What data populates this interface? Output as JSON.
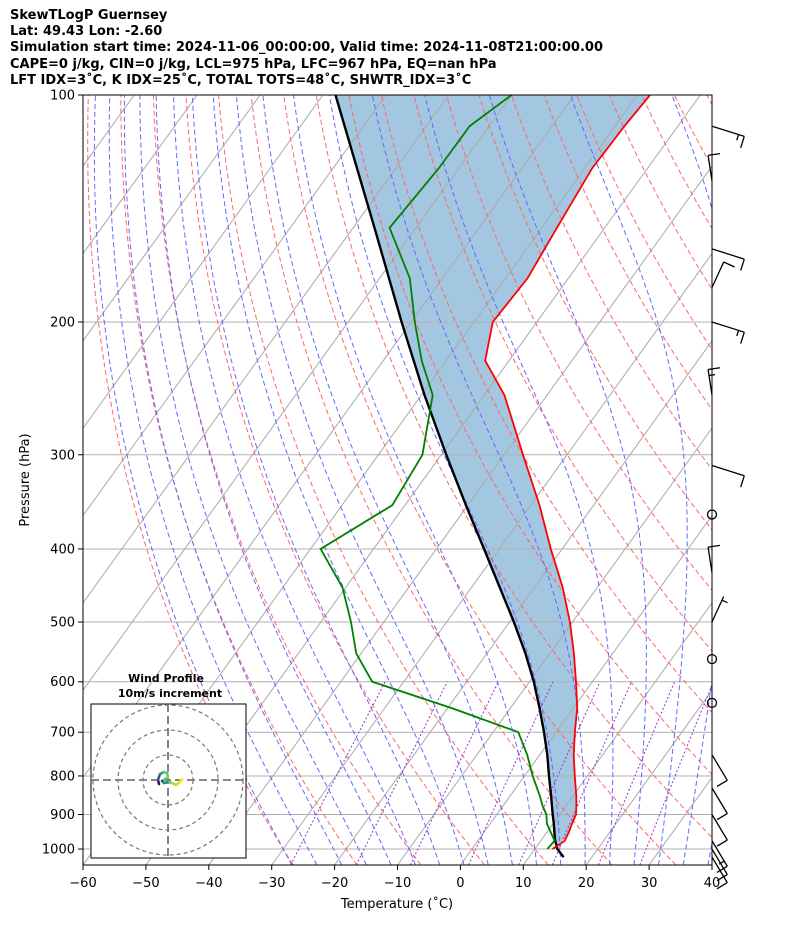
{
  "header": {
    "line1": "SkewTLogP Guernsey",
    "line2": "Lat: 49.43   Lon: -2.60",
    "line3": "Simulation start time: 2024-11-06_00:00:00, Valid time: 2024-11-08T21:00:00.00",
    "line4": "CAPE=0 j/kg, CIN=0 j/kg, LCL=975 hPa, LFC=967 hPa, EQ=nan hPa",
    "line5": "LFT IDX=3˚C, K IDX=25˚C, TOTAL TOTS=48˚C, SHWTR_IDX=3˚C"
  },
  "chart_data": {
    "type": "line",
    "title": "SkewTLogP Guernsey",
    "xlabel": "Temperature (˚C)",
    "ylabel": "Pressure (hPa)",
    "xlim": [
      -60,
      40
    ],
    "ylim": [
      1050,
      100
    ],
    "y_scale": "log",
    "x_ticks": [
      "−60",
      "−50",
      "−40",
      "−30",
      "−20",
      "−10",
      "0",
      "10",
      "20",
      "30",
      "40"
    ],
    "y_ticks": [
      "100",
      "200",
      "300",
      "400",
      "500",
      "600",
      "700",
      "800",
      "900",
      "1000"
    ],
    "grid": true,
    "colors": {
      "temperature": "#ff0000",
      "dewpoint": "#008000",
      "parcel": "#000000",
      "shading": "#a3c7e0",
      "dry_adiabat": "#ff6666",
      "moist_adiabat": "#6666ff",
      "mixing_ratio": "#9933cc",
      "isotherm": "#aaaaaa"
    },
    "series": [
      {
        "key": "temperature",
        "pressure": [
          1000,
          975,
          950,
          925,
          900,
          875,
          850,
          800,
          750,
          700,
          650,
          600,
          550,
          500,
          450,
          400,
          350,
          300,
          250,
          225,
          200,
          175,
          150,
          125,
          110,
          100
        ],
        "values": [
          12.8,
          13.8,
          13.5,
          13.0,
          12.6,
          11.6,
          10.5,
          8.0,
          5.4,
          3.0,
          0.6,
          -2.6,
          -6.2,
          -10.4,
          -15.5,
          -21.8,
          -28.6,
          -37.0,
          -46.8,
          -53.8,
          -57.0,
          -56.5,
          -57.6,
          -58.8,
          -58.5,
          -58.0
        ]
      },
      {
        "key": "dewpoint",
        "pressure": [
          1000,
          975,
          950,
          925,
          900,
          875,
          850,
          800,
          750,
          700,
          650,
          600,
          550,
          500,
          450,
          400,
          350,
          300,
          250,
          225,
          200,
          175,
          150,
          125,
          110,
          100
        ],
        "values": [
          12.0,
          12.2,
          10.6,
          9.0,
          7.9,
          6.2,
          4.7,
          1.3,
          -2.0,
          -6.0,
          -19.4,
          -35.0,
          -40.8,
          -45.2,
          -50.5,
          -58.4,
          -52.0,
          -53.0,
          -58.2,
          -63.9,
          -69.4,
          -75.2,
          -84.2,
          -83.2,
          -83.1,
          -80.0
        ]
      },
      {
        "key": "parcel",
        "pressure": [
          1025,
          1000,
          975,
          950,
          925,
          900,
          850,
          800,
          750,
          700,
          650,
          600,
          550,
          500,
          450,
          400,
          350,
          300,
          250,
          200,
          150,
          100
        ],
        "values": [
          15.5,
          13.6,
          12.3,
          11.2,
          10.1,
          8.9,
          6.5,
          3.9,
          1.2,
          -1.9,
          -5.4,
          -9.3,
          -13.9,
          -19.3,
          -25.5,
          -32.4,
          -40.3,
          -49.2,
          -59.5,
          -71.5,
          -86.6,
          -108.0
        ]
      }
    ],
    "wind_barbs": [
      {
        "pressure": 110,
        "speed_kt": 15
      },
      {
        "pressure": 130,
        "speed_kt": 10
      },
      {
        "pressure": 160,
        "speed_kt": 10
      },
      {
        "pressure": 180,
        "speed_kt": 10
      },
      {
        "pressure": 200,
        "speed_kt": 15
      },
      {
        "pressure": 250,
        "speed_kt": 15
      },
      {
        "pressure": 310,
        "speed_kt": 10
      },
      {
        "pressure": 360,
        "speed_kt": 0
      },
      {
        "pressure": 430,
        "speed_kt": 10
      },
      {
        "pressure": 500,
        "speed_kt": 5
      },
      {
        "pressure": 560,
        "speed_kt": 0
      },
      {
        "pressure": 640,
        "speed_kt": 0
      },
      {
        "pressure": 750,
        "speed_kt": 10
      },
      {
        "pressure": 830,
        "speed_kt": 10
      },
      {
        "pressure": 900,
        "speed_kt": 10
      },
      {
        "pressure": 975,
        "speed_kt": 15
      },
      {
        "pressure": 1000,
        "speed_kt": 10
      },
      {
        "pressure": 1025,
        "speed_kt": 10
      }
    ],
    "inset": {
      "title_line1": "Wind Profile",
      "title_line2": "10m/s increment"
    }
  }
}
